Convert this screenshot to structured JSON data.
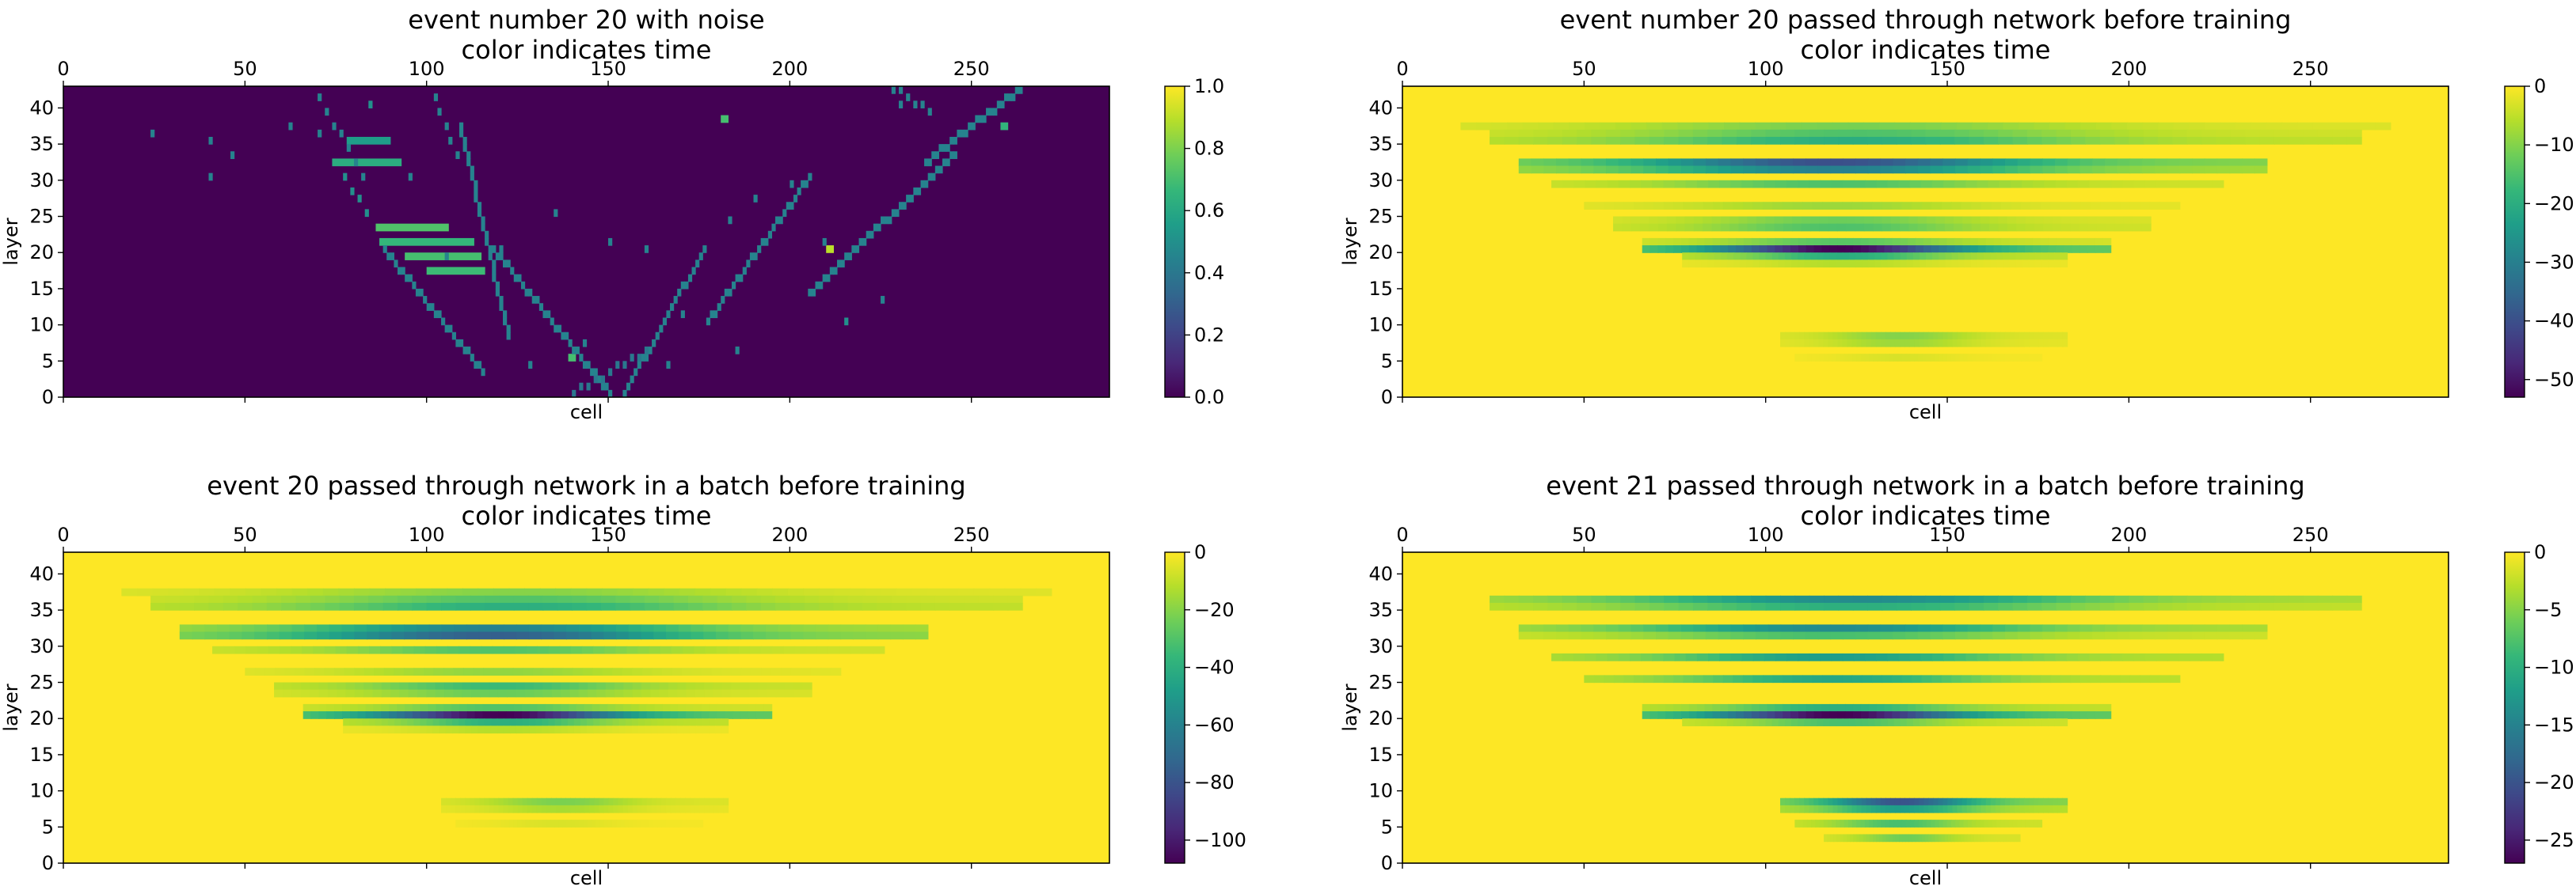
{
  "colors": {
    "viridis": [
      "#440154",
      "#482878",
      "#3e4989",
      "#31688e",
      "#26828e",
      "#1f9e89",
      "#35b779",
      "#6ece58",
      "#b5de2b",
      "#fde725"
    ],
    "axes_edge": "#000000",
    "background": "#ffffff"
  },
  "chart_data": [
    {
      "type": "heatmap",
      "title": "event number 20 with noise\ncolor indicates time",
      "xlabel": "cell",
      "ylabel": "layer",
      "xlim": [
        0,
        288
      ],
      "ylim": [
        0,
        43
      ],
      "xticks": [
        0,
        50,
        100,
        150,
        200,
        250
      ],
      "yticks": [
        0,
        5,
        10,
        15,
        20,
        25,
        30,
        35,
        40
      ],
      "x_axis_position": "top",
      "colorbar": {
        "min": 0.0,
        "max": 1.0,
        "ticks": [
          "0.0",
          "0.2",
          "0.4",
          "0.6",
          "0.8",
          "1.0"
        ]
      },
      "background_value": 0.0,
      "strips": [
        {
          "y": 32,
          "x0": 74,
          "x1": 93,
          "v": 0.62
        },
        {
          "y": 35,
          "x0": 78,
          "x1": 90,
          "v": 0.55
        },
        {
          "y": 23,
          "x0": 86,
          "x1": 106,
          "v": 0.72
        },
        {
          "y": 21,
          "x0": 87,
          "x1": 113,
          "v": 0.66
        },
        {
          "y": 19,
          "x0": 94,
          "x1": 115,
          "v": 0.7
        },
        {
          "y": 17,
          "x0": 100,
          "x1": 116,
          "v": 0.68
        },
        {
          "y": 38,
          "x0": 181,
          "x1": 183,
          "v": 0.7
        },
        {
          "y": 37,
          "x0": 258,
          "x1": 260,
          "v": 0.65
        },
        {
          "y": 20,
          "x0": 210,
          "x1": 212,
          "v": 0.9
        },
        {
          "y": 5,
          "x0": 139,
          "x1": 141,
          "v": 0.7
        }
      ],
      "tracks": [
        {
          "x0": 68,
          "y0": 43,
          "x1": 82,
          "y1": 30,
          "v": 0.45,
          "step": 2
        },
        {
          "x0": 100,
          "y0": 43,
          "x1": 108,
          "y1": 33,
          "v": 0.45,
          "step": 2
        },
        {
          "x0": 109,
          "y0": 37,
          "x1": 122,
          "y1": 8,
          "v": 0.45,
          "step": 1
        },
        {
          "x0": 77,
          "y0": 30,
          "x1": 83,
          "y1": 25,
          "v": 0.5,
          "step": 2
        },
        {
          "x0": 88,
          "y0": 20,
          "x1": 115,
          "y1": 3,
          "v": 0.45,
          "step": 1
        },
        {
          "x0": 118,
          "y0": 20,
          "x1": 150,
          "y1": 0,
          "v": 0.45,
          "step": 1
        },
        {
          "x0": 154,
          "y0": 0,
          "x1": 176,
          "y1": 20,
          "v": 0.45,
          "step": 1
        },
        {
          "x0": 177,
          "y0": 10,
          "x1": 205,
          "y1": 30,
          "v": 0.45,
          "step": 1
        },
        {
          "x0": 205,
          "y0": 14,
          "x1": 245,
          "y1": 33,
          "v": 0.45,
          "step": 1
        },
        {
          "x0": 237,
          "y0": 32,
          "x1": 265,
          "y1": 43,
          "v": 0.45,
          "step": 1
        },
        {
          "x0": 140,
          "y0": 0,
          "x1": 160,
          "y1": 6,
          "v": 0.4,
          "step": 2
        },
        {
          "x0": 226,
          "y0": 43,
          "x1": 238,
          "y1": 39,
          "v": 0.45,
          "step": 2
        }
      ],
      "dots": [
        [
          24,
          36,
          0.45
        ],
        [
          40,
          35,
          0.45
        ],
        [
          46,
          33,
          0.45
        ],
        [
          40,
          30,
          0.45
        ],
        [
          84,
          40,
          0.5
        ],
        [
          120,
          20,
          0.45
        ],
        [
          135,
          25,
          0.45
        ],
        [
          150,
          21,
          0.45
        ],
        [
          160,
          20,
          0.45
        ],
        [
          183,
          24,
          0.45
        ],
        [
          200,
          29,
          0.45
        ],
        [
          209,
          21,
          0.45
        ],
        [
          215,
          10,
          0.5
        ],
        [
          225,
          13,
          0.45
        ],
        [
          170,
          11,
          0.45
        ],
        [
          143,
          7,
          0.45
        ],
        [
          105,
          19,
          0.45
        ],
        [
          95,
          30,
          0.45
        ],
        [
          70,
          36,
          0.45
        ],
        [
          230,
          40,
          0.45
        ],
        [
          62,
          37,
          0.45
        ],
        [
          185,
          6,
          0.45
        ],
        [
          166,
          4,
          0.45
        ],
        [
          128,
          4,
          0.45
        ],
        [
          190,
          27,
          0.45
        ]
      ]
    },
    {
      "type": "heatmap",
      "title": "event number 20 passed through network before training\ncolor indicates time",
      "xlabel": "cell",
      "ylabel": "layer",
      "xlim": [
        0,
        288
      ],
      "ylim": [
        0,
        43
      ],
      "xticks": [
        0,
        50,
        100,
        150,
        200,
        250
      ],
      "yticks": [
        0,
        5,
        10,
        15,
        20,
        25,
        30,
        35,
        40
      ],
      "x_axis_position": "top",
      "colorbar": {
        "min": -53,
        "max": 0,
        "ticks": [
          "−50",
          "−40",
          "−30",
          "−20",
          "−10",
          "0"
        ]
      },
      "background_value": 0,
      "rows": [
        {
          "y": 37,
          "x0": 16,
          "x1": 272,
          "min": -11
        },
        {
          "y": 36,
          "x0": 24,
          "x1": 264,
          "min": -15
        },
        {
          "y": 35,
          "x0": 24,
          "x1": 264,
          "min": -20
        },
        {
          "y": 32,
          "x0": 32,
          "x1": 238,
          "min": -40
        },
        {
          "y": 31,
          "x0": 32,
          "x1": 238,
          "min": -30
        },
        {
          "y": 29,
          "x0": 41,
          "x1": 226,
          "min": -15
        },
        {
          "y": 26,
          "x0": 50,
          "x1": 214,
          "min": -8
        },
        {
          "y": 24,
          "x0": 58,
          "x1": 206,
          "min": -12
        },
        {
          "y": 23,
          "x0": 58,
          "x1": 206,
          "min": -15
        },
        {
          "y": 21,
          "x0": 66,
          "x1": 195,
          "min": -14
        },
        {
          "y": 20,
          "x0": 66,
          "x1": 195,
          "min": -53
        },
        {
          "y": 19,
          "x0": 77,
          "x1": 183,
          "min": -20
        },
        {
          "y": 18,
          "x0": 77,
          "x1": 183,
          "min": -6
        },
        {
          "y": 8,
          "x0": 104,
          "x1": 183,
          "min": -10
        },
        {
          "y": 7,
          "x0": 104,
          "x1": 183,
          "min": -8
        },
        {
          "y": 5,
          "x0": 108,
          "x1": 176,
          "min": -3
        }
      ]
    },
    {
      "type": "heatmap",
      "title": "event 20 passed through network in a batch before training\ncolor indicates time",
      "xlabel": "cell",
      "ylabel": "layer",
      "xlim": [
        0,
        288
      ],
      "ylim": [
        0,
        43
      ],
      "xticks": [
        0,
        50,
        100,
        150,
        200,
        250
      ],
      "yticks": [
        0,
        5,
        10,
        15,
        20,
        25,
        30,
        35,
        40
      ],
      "x_axis_position": "top",
      "colorbar": {
        "min": -108,
        "max": 0,
        "ticks": [
          "−100",
          "−80",
          "−60",
          "−40",
          "−20",
          "0"
        ]
      },
      "background_value": 0,
      "rows": [
        {
          "y": 37,
          "x0": 16,
          "x1": 272,
          "min": -20
        },
        {
          "y": 36,
          "x0": 24,
          "x1": 264,
          "min": -30
        },
        {
          "y": 35,
          "x0": 24,
          "x1": 264,
          "min": -40
        },
        {
          "y": 32,
          "x0": 32,
          "x1": 238,
          "min": -60
        },
        {
          "y": 31,
          "x0": 32,
          "x1": 238,
          "min": -75
        },
        {
          "y": 29,
          "x0": 41,
          "x1": 226,
          "min": -30
        },
        {
          "y": 26,
          "x0": 50,
          "x1": 214,
          "min": -18
        },
        {
          "y": 24,
          "x0": 58,
          "x1": 206,
          "min": -35
        },
        {
          "y": 23,
          "x0": 58,
          "x1": 206,
          "min": -25
        },
        {
          "y": 21,
          "x0": 66,
          "x1": 195,
          "min": -30
        },
        {
          "y": 20,
          "x0": 66,
          "x1": 195,
          "min": -108
        },
        {
          "y": 19,
          "x0": 77,
          "x1": 183,
          "min": -40
        },
        {
          "y": 18,
          "x0": 77,
          "x1": 183,
          "min": -12
        },
        {
          "y": 8,
          "x0": 104,
          "x1": 183,
          "min": -22
        },
        {
          "y": 7,
          "x0": 104,
          "x1": 183,
          "min": -14
        },
        {
          "y": 5,
          "x0": 108,
          "x1": 176,
          "min": -6
        }
      ]
    },
    {
      "type": "heatmap",
      "title": "event 21 passed through network in a batch before training\ncolor indicates time",
      "xlabel": "cell",
      "ylabel": "layer",
      "xlim": [
        0,
        288
      ],
      "ylim": [
        0,
        43
      ],
      "xticks": [
        0,
        50,
        100,
        150,
        200,
        250
      ],
      "yticks": [
        0,
        5,
        10,
        15,
        20,
        25,
        30,
        35,
        40
      ],
      "x_axis_position": "top",
      "colorbar": {
        "min": -27,
        "max": 0,
        "ticks": [
          "−25",
          "−20",
          "−15",
          "−10",
          "−5",
          "0"
        ]
      },
      "background_value": 0,
      "rows": [
        {
          "y": 36,
          "x0": 24,
          "x1": 264,
          "min": -14
        },
        {
          "y": 35,
          "x0": 24,
          "x1": 264,
          "min": -10
        },
        {
          "y": 32,
          "x0": 32,
          "x1": 238,
          "min": -14
        },
        {
          "y": 31,
          "x0": 32,
          "x1": 238,
          "min": -8
        },
        {
          "y": 28,
          "x0": 41,
          "x1": 226,
          "min": -12
        },
        {
          "y": 25,
          "x0": 50,
          "x1": 214,
          "min": -11
        },
        {
          "y": 21,
          "x0": 66,
          "x1": 195,
          "min": -10
        },
        {
          "y": 20,
          "x0": 66,
          "x1": 195,
          "min": -27
        },
        {
          "y": 19,
          "x0": 77,
          "x1": 183,
          "min": -8
        },
        {
          "y": 8,
          "x0": 104,
          "x1": 183,
          "min": -20
        },
        {
          "y": 7,
          "x0": 104,
          "x1": 183,
          "min": -12
        },
        {
          "y": 5,
          "x0": 108,
          "x1": 176,
          "min": -8
        },
        {
          "y": 3,
          "x0": 116,
          "x1": 170,
          "min": -6
        }
      ]
    }
  ]
}
